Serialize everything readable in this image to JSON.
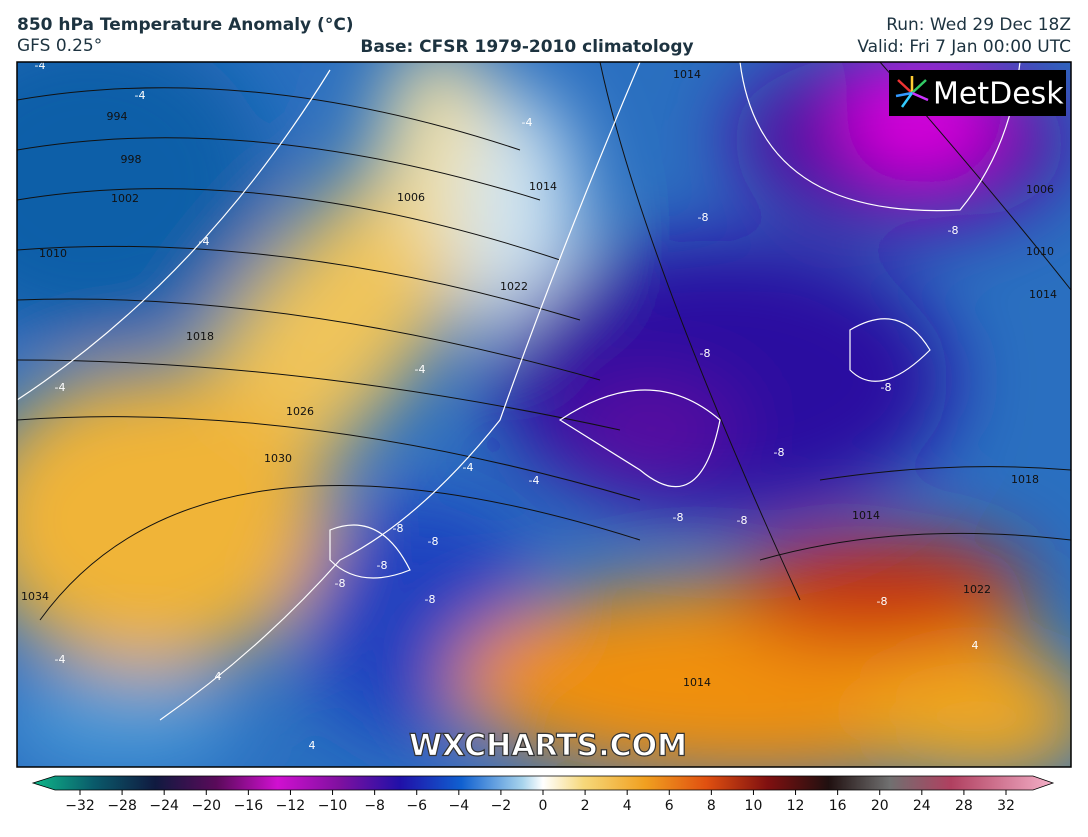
{
  "header": {
    "title": "850 hPa Temperature Anomaly (°C)",
    "model": "GFS 0.25°",
    "base": "Base: CFSR 1979-2010 climatology",
    "run": "Run: Wed 29 Dec 18Z",
    "valid": "Valid: Fri 7 Jan 00:00 UTC"
  },
  "map": {
    "logo": "MetDesk",
    "watermark": "WXCHARTS.COM",
    "isobar_labels": [
      "994",
      "998",
      "1002",
      "1006",
      "1010",
      "1018",
      "1026",
      "1030",
      "1034",
      "1014",
      "1014",
      "1022",
      "1006",
      "1010",
      "1014",
      "1018",
      "1014",
      "1022",
      "1014"
    ],
    "anomaly_labels": [
      "-4",
      "-4",
      "-4",
      "-4",
      "-4",
      "-4",
      "-4",
      "-8",
      "-8",
      "-8",
      "-8",
      "-8",
      "-8",
      "-8",
      "-8",
      "-8",
      "-8",
      "-8",
      "-8",
      "-8",
      "4",
      "4",
      "4",
      "-4",
      "-4"
    ]
  },
  "colorbar": {
    "ticks": [
      {
        "value": -32,
        "label": "−32"
      },
      {
        "value": -28,
        "label": "−28"
      },
      {
        "value": -24,
        "label": "−24"
      },
      {
        "value": -20,
        "label": "−20"
      },
      {
        "value": -16,
        "label": "−16"
      },
      {
        "value": -12,
        "label": "−12"
      },
      {
        "value": -10,
        "label": "−10"
      },
      {
        "value": -8,
        "label": "−8"
      },
      {
        "value": -6,
        "label": "−6"
      },
      {
        "value": -4,
        "label": "−4"
      },
      {
        "value": -2,
        "label": "−2"
      },
      0,
      2,
      4,
      6,
      8,
      10,
      12,
      16,
      20,
      24,
      28,
      32
    ]
  }
}
